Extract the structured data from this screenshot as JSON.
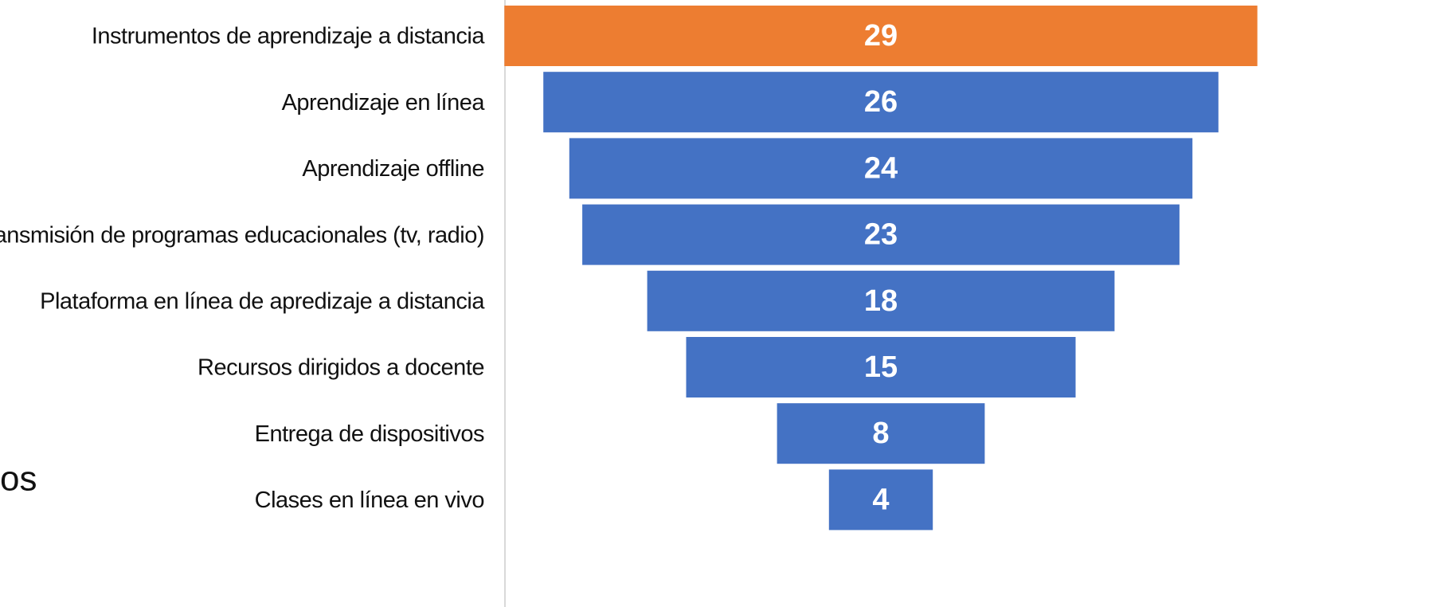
{
  "chart_data": {
    "type": "funnel",
    "categories": [
      "Instrumentos de aprendizaje a distancia",
      "Aprendizaje en línea",
      "Aprendizaje offline",
      "Transmisión de programas educacionales (tv, radio)",
      "Plataforma en línea de apredizaje a distancia",
      "Recursos dirigidos a docente",
      "Entrega de dispositivos",
      "Clases en línea en vivo"
    ],
    "values": [
      29,
      26,
      24,
      23,
      18,
      15,
      8,
      4
    ],
    "colors": [
      "#ed7d31",
      "#4472c4",
      "#4472c4",
      "#4472c4",
      "#4472c4",
      "#4472c4",
      "#4472c4",
      "#4472c4"
    ]
  },
  "fragment": "os"
}
